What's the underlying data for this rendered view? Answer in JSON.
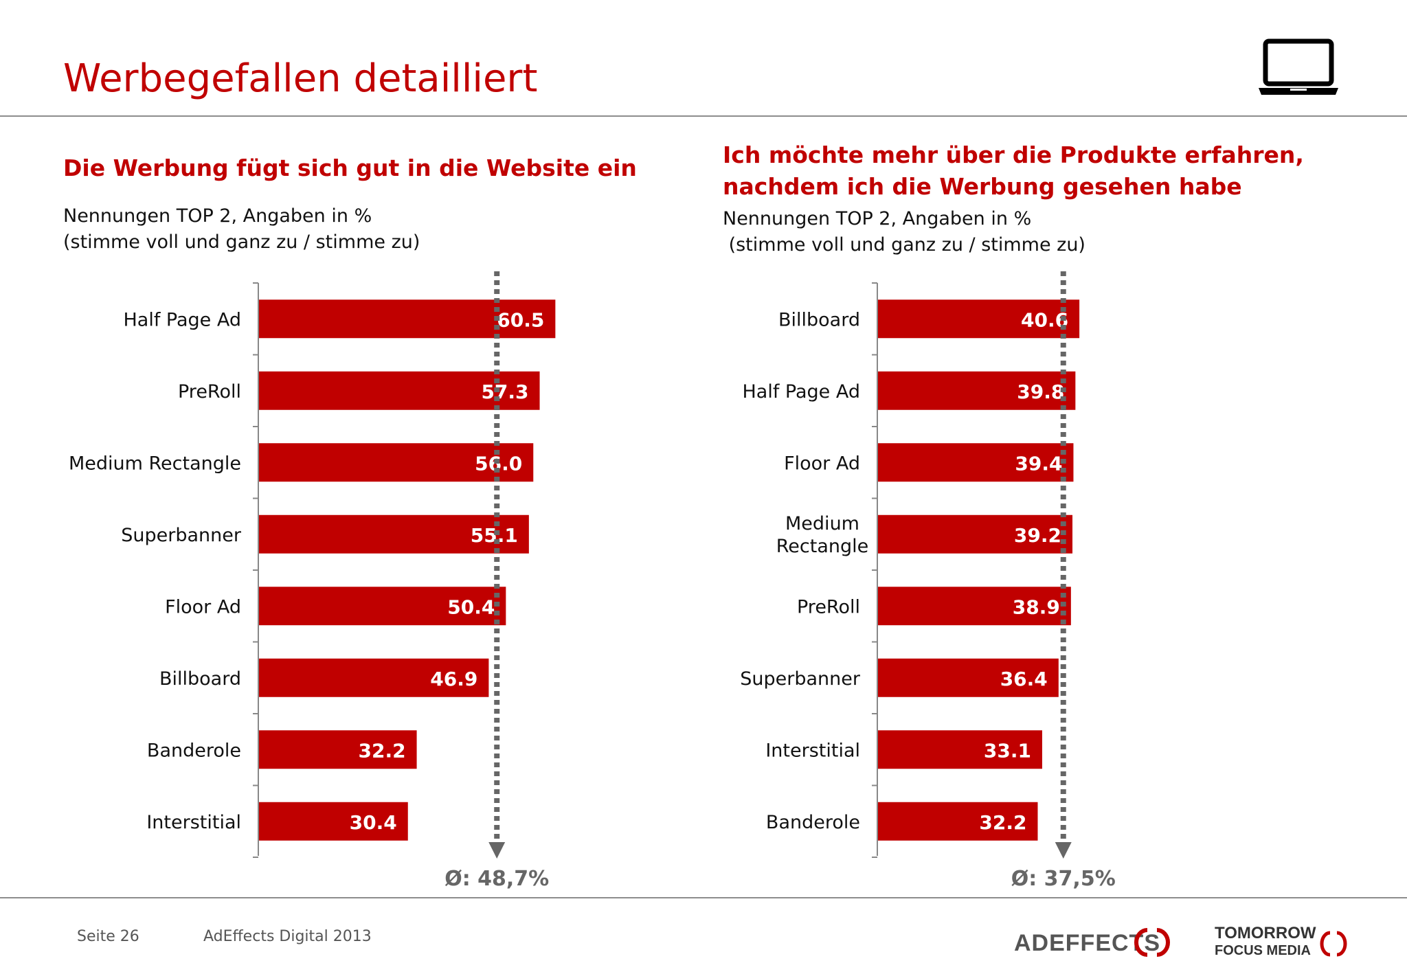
{
  "title": "Werbegefallen detailliert",
  "colors": {
    "accent": "#c00000",
    "text": "#111111",
    "average_marker": "#666666"
  },
  "icons": {
    "device": "laptop-icon"
  },
  "left": {
    "subtitle": "Die Werbung fügt sich gut in die Website ein",
    "note_line1": "Nennungen TOP 2, Angaben in %",
    "note_line2": "(stimme voll und ganz zu / stimme zu)"
  },
  "right": {
    "subtitle_line1": "Ich möchte mehr über die Produkte erfahren,",
    "subtitle_line2": "nachdem ich die Werbung gesehen habe",
    "note_line1": "Nennungen TOP 2, Angaben in %",
    "note_line2": " (stimme voll und ganz zu / stimme zu)"
  },
  "chart_data": [
    {
      "type": "bar",
      "orientation": "horizontal",
      "title": "Die Werbung fügt sich gut in die Website ein",
      "categories": [
        "Half Page Ad",
        "PreRoll",
        "Medium Rectangle",
        "Superbanner",
        "Floor Ad",
        "Billboard",
        "Banderole",
        "Interstitial"
      ],
      "values": [
        60.5,
        57.3,
        56.0,
        55.1,
        50.4,
        46.9,
        32.2,
        30.4
      ],
      "value_labels": [
        "60.5",
        "57.3",
        "56.0",
        "55.1",
        "50.4",
        "46.9",
        "32.2",
        "30.4"
      ],
      "average": 48.7,
      "average_label": "Ø: 48,7%",
      "xlim": [
        0,
        100
      ],
      "grid": false,
      "legend": "none"
    },
    {
      "type": "bar",
      "orientation": "horizontal",
      "title": "Ich möchte mehr über die Produkte erfahren, nachdem ich die Werbung gesehen habe",
      "categories": [
        "Billboard",
        "Half Page Ad",
        "Floor Ad",
        "Medium Rectangle",
        "PreRoll",
        "Superbanner",
        "Interstitial",
        "Banderole"
      ],
      "values": [
        40.6,
        39.8,
        39.4,
        39.2,
        38.9,
        36.4,
        33.1,
        32.2
      ],
      "value_labels": [
        "40.6",
        "39.8",
        "39.4",
        "39.2",
        "38.9",
        "36.4",
        "33.1",
        "32.2"
      ],
      "average": 37.5,
      "average_label": "Ø: 37,5%",
      "xlim": [
        0,
        100
      ],
      "grid": false,
      "legend": "none"
    }
  ],
  "footer": {
    "page": "Seite 26",
    "study": "AdEffects Digital 2013",
    "logo_adeffects": "ADEFFECTS",
    "logo_tfm_line1": "TOMORROW",
    "logo_tfm_line2": "FOCUS MEDIA"
  }
}
